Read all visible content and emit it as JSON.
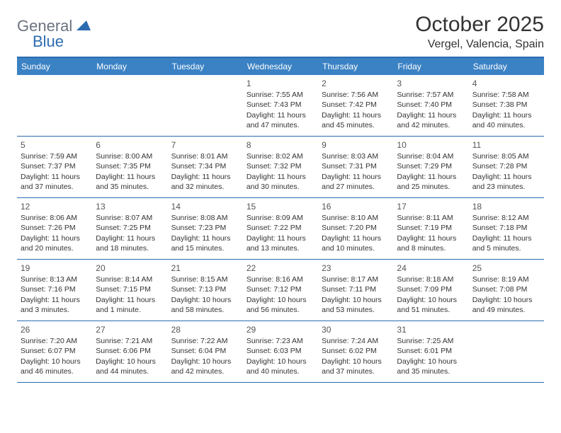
{
  "logo": {
    "text1": "General",
    "text2": "Blue"
  },
  "title": "October 2025",
  "location": "Vergel, Valencia, Spain",
  "day_headers": [
    "Sunday",
    "Monday",
    "Tuesday",
    "Wednesday",
    "Thursday",
    "Friday",
    "Saturday"
  ],
  "colors": {
    "header_bg": "#3b82c4",
    "border": "#2b6cb0",
    "text": "#333333",
    "day_header_text": "#ffffff"
  },
  "weeks": [
    [
      {
        "empty": true
      },
      {
        "empty": true
      },
      {
        "empty": true
      },
      {
        "day": "1",
        "sunrise": "Sunrise: 7:55 AM",
        "sunset": "Sunset: 7:43 PM",
        "daylight": "Daylight: 11 hours and 47 minutes."
      },
      {
        "day": "2",
        "sunrise": "Sunrise: 7:56 AM",
        "sunset": "Sunset: 7:42 PM",
        "daylight": "Daylight: 11 hours and 45 minutes."
      },
      {
        "day": "3",
        "sunrise": "Sunrise: 7:57 AM",
        "sunset": "Sunset: 7:40 PM",
        "daylight": "Daylight: 11 hours and 42 minutes."
      },
      {
        "day": "4",
        "sunrise": "Sunrise: 7:58 AM",
        "sunset": "Sunset: 7:38 PM",
        "daylight": "Daylight: 11 hours and 40 minutes."
      }
    ],
    [
      {
        "day": "5",
        "sunrise": "Sunrise: 7:59 AM",
        "sunset": "Sunset: 7:37 PM",
        "daylight": "Daylight: 11 hours and 37 minutes."
      },
      {
        "day": "6",
        "sunrise": "Sunrise: 8:00 AM",
        "sunset": "Sunset: 7:35 PM",
        "daylight": "Daylight: 11 hours and 35 minutes."
      },
      {
        "day": "7",
        "sunrise": "Sunrise: 8:01 AM",
        "sunset": "Sunset: 7:34 PM",
        "daylight": "Daylight: 11 hours and 32 minutes."
      },
      {
        "day": "8",
        "sunrise": "Sunrise: 8:02 AM",
        "sunset": "Sunset: 7:32 PM",
        "daylight": "Daylight: 11 hours and 30 minutes."
      },
      {
        "day": "9",
        "sunrise": "Sunrise: 8:03 AM",
        "sunset": "Sunset: 7:31 PM",
        "daylight": "Daylight: 11 hours and 27 minutes."
      },
      {
        "day": "10",
        "sunrise": "Sunrise: 8:04 AM",
        "sunset": "Sunset: 7:29 PM",
        "daylight": "Daylight: 11 hours and 25 minutes."
      },
      {
        "day": "11",
        "sunrise": "Sunrise: 8:05 AM",
        "sunset": "Sunset: 7:28 PM",
        "daylight": "Daylight: 11 hours and 23 minutes."
      }
    ],
    [
      {
        "day": "12",
        "sunrise": "Sunrise: 8:06 AM",
        "sunset": "Sunset: 7:26 PM",
        "daylight": "Daylight: 11 hours and 20 minutes."
      },
      {
        "day": "13",
        "sunrise": "Sunrise: 8:07 AM",
        "sunset": "Sunset: 7:25 PM",
        "daylight": "Daylight: 11 hours and 18 minutes."
      },
      {
        "day": "14",
        "sunrise": "Sunrise: 8:08 AM",
        "sunset": "Sunset: 7:23 PM",
        "daylight": "Daylight: 11 hours and 15 minutes."
      },
      {
        "day": "15",
        "sunrise": "Sunrise: 8:09 AM",
        "sunset": "Sunset: 7:22 PM",
        "daylight": "Daylight: 11 hours and 13 minutes."
      },
      {
        "day": "16",
        "sunrise": "Sunrise: 8:10 AM",
        "sunset": "Sunset: 7:20 PM",
        "daylight": "Daylight: 11 hours and 10 minutes."
      },
      {
        "day": "17",
        "sunrise": "Sunrise: 8:11 AM",
        "sunset": "Sunset: 7:19 PM",
        "daylight": "Daylight: 11 hours and 8 minutes."
      },
      {
        "day": "18",
        "sunrise": "Sunrise: 8:12 AM",
        "sunset": "Sunset: 7:18 PM",
        "daylight": "Daylight: 11 hours and 5 minutes."
      }
    ],
    [
      {
        "day": "19",
        "sunrise": "Sunrise: 8:13 AM",
        "sunset": "Sunset: 7:16 PM",
        "daylight": "Daylight: 11 hours and 3 minutes."
      },
      {
        "day": "20",
        "sunrise": "Sunrise: 8:14 AM",
        "sunset": "Sunset: 7:15 PM",
        "daylight": "Daylight: 11 hours and 1 minute."
      },
      {
        "day": "21",
        "sunrise": "Sunrise: 8:15 AM",
        "sunset": "Sunset: 7:13 PM",
        "daylight": "Daylight: 10 hours and 58 minutes."
      },
      {
        "day": "22",
        "sunrise": "Sunrise: 8:16 AM",
        "sunset": "Sunset: 7:12 PM",
        "daylight": "Daylight: 10 hours and 56 minutes."
      },
      {
        "day": "23",
        "sunrise": "Sunrise: 8:17 AM",
        "sunset": "Sunset: 7:11 PM",
        "daylight": "Daylight: 10 hours and 53 minutes."
      },
      {
        "day": "24",
        "sunrise": "Sunrise: 8:18 AM",
        "sunset": "Sunset: 7:09 PM",
        "daylight": "Daylight: 10 hours and 51 minutes."
      },
      {
        "day": "25",
        "sunrise": "Sunrise: 8:19 AM",
        "sunset": "Sunset: 7:08 PM",
        "daylight": "Daylight: 10 hours and 49 minutes."
      }
    ],
    [
      {
        "day": "26",
        "sunrise": "Sunrise: 7:20 AM",
        "sunset": "Sunset: 6:07 PM",
        "daylight": "Daylight: 10 hours and 46 minutes."
      },
      {
        "day": "27",
        "sunrise": "Sunrise: 7:21 AM",
        "sunset": "Sunset: 6:06 PM",
        "daylight": "Daylight: 10 hours and 44 minutes."
      },
      {
        "day": "28",
        "sunrise": "Sunrise: 7:22 AM",
        "sunset": "Sunset: 6:04 PM",
        "daylight": "Daylight: 10 hours and 42 minutes."
      },
      {
        "day": "29",
        "sunrise": "Sunrise: 7:23 AM",
        "sunset": "Sunset: 6:03 PM",
        "daylight": "Daylight: 10 hours and 40 minutes."
      },
      {
        "day": "30",
        "sunrise": "Sunrise: 7:24 AM",
        "sunset": "Sunset: 6:02 PM",
        "daylight": "Daylight: 10 hours and 37 minutes."
      },
      {
        "day": "31",
        "sunrise": "Sunrise: 7:25 AM",
        "sunset": "Sunset: 6:01 PM",
        "daylight": "Daylight: 10 hours and 35 minutes."
      },
      {
        "empty": true
      }
    ]
  ]
}
